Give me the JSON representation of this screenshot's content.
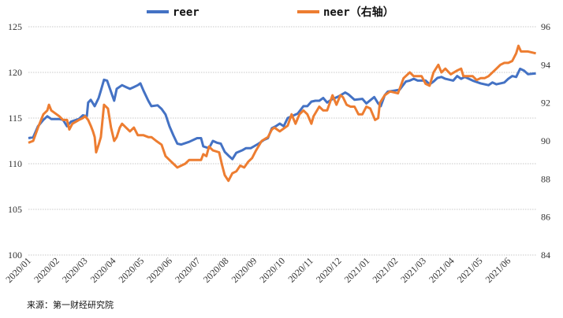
{
  "chart_data": {
    "type": "line",
    "title": "",
    "source": "来源：第一财经研究院",
    "x_unit": "months since 2020/01",
    "x_tick_labels": [
      "2020/01",
      "2020/02",
      "2020/03",
      "2020/04",
      "2020/05",
      "2020/06",
      "2020/07",
      "2020/08",
      "2020/09",
      "2020/10",
      "2020/11",
      "2020/12",
      "2021/01",
      "2021/02",
      "2021/03",
      "2021/04",
      "2021/05",
      "2021/06"
    ],
    "y_left": {
      "range": [
        100,
        125
      ],
      "ticks": [
        "100",
        "105",
        "110",
        "115",
        "120",
        "125"
      ]
    },
    "y_right": {
      "range": [
        84,
        96
      ],
      "ticks": [
        "84",
        "86",
        "88",
        "90",
        "92",
        "94",
        "96"
      ]
    },
    "grid": true,
    "legend_position": "top-center",
    "series": [
      {
        "name": "reer",
        "axis": "left",
        "color": "#4472C4",
        "points": [
          [
            0,
            112.8
          ],
          [
            0.17,
            112.9
          ],
          [
            0.34,
            114.1
          ],
          [
            0.53,
            114.8
          ],
          [
            0.67,
            115.2
          ],
          [
            0.81,
            114.9
          ],
          [
            1.09,
            114.9
          ],
          [
            1.23,
            114.8
          ],
          [
            1.37,
            114.1
          ],
          [
            1.51,
            114.6
          ],
          [
            1.79,
            114.9
          ],
          [
            1.93,
            115.3
          ],
          [
            2.07,
            115.2
          ],
          [
            2.12,
            116.7
          ],
          [
            2.21,
            117.0
          ],
          [
            2.35,
            116.3
          ],
          [
            2.49,
            117.2
          ],
          [
            2.57,
            118.0
          ],
          [
            2.68,
            119.2
          ],
          [
            2.79,
            119.1
          ],
          [
            2.96,
            117.6
          ],
          [
            3.04,
            116.9
          ],
          [
            3.13,
            118.2
          ],
          [
            3.32,
            118.6
          ],
          [
            3.46,
            118.4
          ],
          [
            3.6,
            118.2
          ],
          [
            3.74,
            118.4
          ],
          [
            3.88,
            118.6
          ],
          [
            3.97,
            118.8
          ],
          [
            4.08,
            118.0
          ],
          [
            4.25,
            116.9
          ],
          [
            4.36,
            116.3
          ],
          [
            4.58,
            116.4
          ],
          [
            4.72,
            116.0
          ],
          [
            4.86,
            115.4
          ],
          [
            5.0,
            114.1
          ],
          [
            5.14,
            113.1
          ],
          [
            5.28,
            112.2
          ],
          [
            5.42,
            112.1
          ],
          [
            5.7,
            112.4
          ],
          [
            5.98,
            112.8
          ],
          [
            6.12,
            112.8
          ],
          [
            6.2,
            111.9
          ],
          [
            6.4,
            111.7
          ],
          [
            6.54,
            112.5
          ],
          [
            6.68,
            112.3
          ],
          [
            6.82,
            112.2
          ],
          [
            6.96,
            111.3
          ],
          [
            7.09,
            110.9
          ],
          [
            7.23,
            110.5
          ],
          [
            7.37,
            111.2
          ],
          [
            7.6,
            111.5
          ],
          [
            7.71,
            111.7
          ],
          [
            7.88,
            111.7
          ],
          [
            7.99,
            111.9
          ],
          [
            8.16,
            112.2
          ],
          [
            8.35,
            112.6
          ],
          [
            8.49,
            112.8
          ],
          [
            8.63,
            113.9
          ],
          [
            8.77,
            114.1
          ],
          [
            8.91,
            114.4
          ],
          [
            9.05,
            114.1
          ],
          [
            9.19,
            115.0
          ],
          [
            9.33,
            115.2
          ],
          [
            9.55,
            115.5
          ],
          [
            9.75,
            116.3
          ],
          [
            9.89,
            116.3
          ],
          [
            10.03,
            116.8
          ],
          [
            10.17,
            116.9
          ],
          [
            10.31,
            116.9
          ],
          [
            10.45,
            117.2
          ],
          [
            10.59,
            116.7
          ],
          [
            10.73,
            117.0
          ],
          [
            11.01,
            117.4
          ],
          [
            11.23,
            117.8
          ],
          [
            11.34,
            117.6
          ],
          [
            11.56,
            117.0
          ],
          [
            11.84,
            117.1
          ],
          [
            11.98,
            116.6
          ],
          [
            12.26,
            117.3
          ],
          [
            12.4,
            116.6
          ],
          [
            12.49,
            116.3
          ],
          [
            12.63,
            117.5
          ],
          [
            12.74,
            117.9
          ],
          [
            12.96,
            118.0
          ],
          [
            13.16,
            118.1
          ],
          [
            13.38,
            119.0
          ],
          [
            13.52,
            119.1
          ],
          [
            13.66,
            119.3
          ],
          [
            13.8,
            119.1
          ],
          [
            14.08,
            119.1
          ],
          [
            14.22,
            118.7
          ],
          [
            14.36,
            119.0
          ],
          [
            14.5,
            119.4
          ],
          [
            14.64,
            119.5
          ],
          [
            14.78,
            119.3
          ],
          [
            15.06,
            119.1
          ],
          [
            15.2,
            119.6
          ],
          [
            15.34,
            119.3
          ],
          [
            15.47,
            119.5
          ],
          [
            15.75,
            119.1
          ],
          [
            16.03,
            118.8
          ],
          [
            16.31,
            118.6
          ],
          [
            16.45,
            118.9
          ],
          [
            16.59,
            118.7
          ],
          [
            16.87,
            118.9
          ],
          [
            17.01,
            119.3
          ],
          [
            17.15,
            119.6
          ],
          [
            17.29,
            119.5
          ],
          [
            17.43,
            120.4
          ],
          [
            17.57,
            120.2
          ],
          [
            17.71,
            119.8
          ],
          [
            17.99,
            119.9
          ]
        ]
      },
      {
        "name": "neer（右轴）",
        "axis": "right",
        "color": "#ED7D31",
        "points": [
          [
            0,
            89.9
          ],
          [
            0.17,
            90.0
          ],
          [
            0.34,
            90.7
          ],
          [
            0.53,
            91.4
          ],
          [
            0.67,
            91.6
          ],
          [
            0.73,
            91.9
          ],
          [
            0.81,
            91.6
          ],
          [
            1.09,
            91.3
          ],
          [
            1.23,
            91.1
          ],
          [
            1.37,
            91.1
          ],
          [
            1.45,
            90.6
          ],
          [
            1.56,
            90.9
          ],
          [
            1.79,
            91.1
          ],
          [
            1.93,
            91.2
          ],
          [
            2.01,
            91.3
          ],
          [
            2.12,
            91.1
          ],
          [
            2.21,
            90.8
          ],
          [
            2.29,
            90.5
          ],
          [
            2.35,
            90.2
          ],
          [
            2.4,
            89.4
          ],
          [
            2.49,
            89.8
          ],
          [
            2.57,
            90.2
          ],
          [
            2.68,
            91.9
          ],
          [
            2.82,
            91.7
          ],
          [
            2.93,
            90.7
          ],
          [
            3.04,
            90.0
          ],
          [
            3.13,
            90.2
          ],
          [
            3.24,
            90.7
          ],
          [
            3.32,
            90.9
          ],
          [
            3.46,
            90.7
          ],
          [
            3.6,
            90.5
          ],
          [
            3.74,
            90.7
          ],
          [
            3.88,
            90.3
          ],
          [
            4.08,
            90.3
          ],
          [
            4.25,
            90.2
          ],
          [
            4.36,
            90.2
          ],
          [
            4.53,
            90.0
          ],
          [
            4.72,
            89.8
          ],
          [
            4.86,
            89.2
          ],
          [
            5.0,
            89.0
          ],
          [
            5.14,
            88.8
          ],
          [
            5.28,
            88.6
          ],
          [
            5.42,
            88.7
          ],
          [
            5.56,
            88.8
          ],
          [
            5.7,
            89.0
          ],
          [
            5.92,
            89.0
          ],
          [
            6.12,
            89.0
          ],
          [
            6.2,
            89.3
          ],
          [
            6.31,
            89.2
          ],
          [
            6.4,
            89.7
          ],
          [
            6.54,
            89.5
          ],
          [
            6.76,
            89.4
          ],
          [
            6.87,
            88.7
          ],
          [
            6.96,
            88.2
          ],
          [
            7.09,
            87.9
          ],
          [
            7.23,
            88.3
          ],
          [
            7.37,
            88.4
          ],
          [
            7.51,
            88.7
          ],
          [
            7.65,
            88.6
          ],
          [
            7.79,
            88.9
          ],
          [
            7.93,
            89.1
          ],
          [
            8.07,
            89.5
          ],
          [
            8.27,
            90.0
          ],
          [
            8.49,
            90.2
          ],
          [
            8.63,
            90.6
          ],
          [
            8.72,
            90.7
          ],
          [
            8.91,
            90.5
          ],
          [
            9.19,
            90.8
          ],
          [
            9.33,
            91.4
          ],
          [
            9.47,
            90.9
          ],
          [
            9.61,
            91.4
          ],
          [
            9.75,
            91.6
          ],
          [
            9.89,
            91.4
          ],
          [
            10.03,
            90.9
          ],
          [
            10.11,
            91.3
          ],
          [
            10.31,
            91.8
          ],
          [
            10.45,
            91.6
          ],
          [
            10.59,
            91.6
          ],
          [
            10.78,
            92.4
          ],
          [
            10.92,
            91.9
          ],
          [
            11.06,
            92.4
          ],
          [
            11.15,
            92.3
          ],
          [
            11.28,
            91.9
          ],
          [
            11.42,
            91.8
          ],
          [
            11.56,
            91.8
          ],
          [
            11.7,
            91.4
          ],
          [
            11.84,
            91.4
          ],
          [
            11.98,
            91.8
          ],
          [
            12.12,
            91.7
          ],
          [
            12.29,
            91.1
          ],
          [
            12.4,
            91.2
          ],
          [
            12.46,
            92.0
          ],
          [
            12.63,
            92.4
          ],
          [
            12.82,
            92.6
          ],
          [
            13.1,
            92.5
          ],
          [
            13.3,
            93.3
          ],
          [
            13.52,
            93.6
          ],
          [
            13.66,
            93.4
          ],
          [
            13.94,
            93.4
          ],
          [
            14.08,
            93.0
          ],
          [
            14.22,
            92.9
          ],
          [
            14.36,
            93.6
          ],
          [
            14.53,
            94.0
          ],
          [
            14.64,
            93.6
          ],
          [
            14.78,
            93.8
          ],
          [
            14.97,
            93.5
          ],
          [
            15.2,
            93.7
          ],
          [
            15.34,
            93.8
          ],
          [
            15.42,
            93.4
          ],
          [
            15.61,
            93.4
          ],
          [
            15.75,
            93.4
          ],
          [
            15.89,
            93.2
          ],
          [
            16.03,
            93.3
          ],
          [
            16.17,
            93.3
          ],
          [
            16.31,
            93.4
          ],
          [
            16.59,
            93.8
          ],
          [
            16.73,
            94.0
          ],
          [
            16.87,
            94.1
          ],
          [
            17.01,
            94.1
          ],
          [
            17.15,
            94.2
          ],
          [
            17.29,
            94.6
          ],
          [
            17.37,
            95.0
          ],
          [
            17.46,
            94.7
          ],
          [
            17.71,
            94.7
          ],
          [
            17.99,
            94.6
          ]
        ]
      }
    ]
  }
}
